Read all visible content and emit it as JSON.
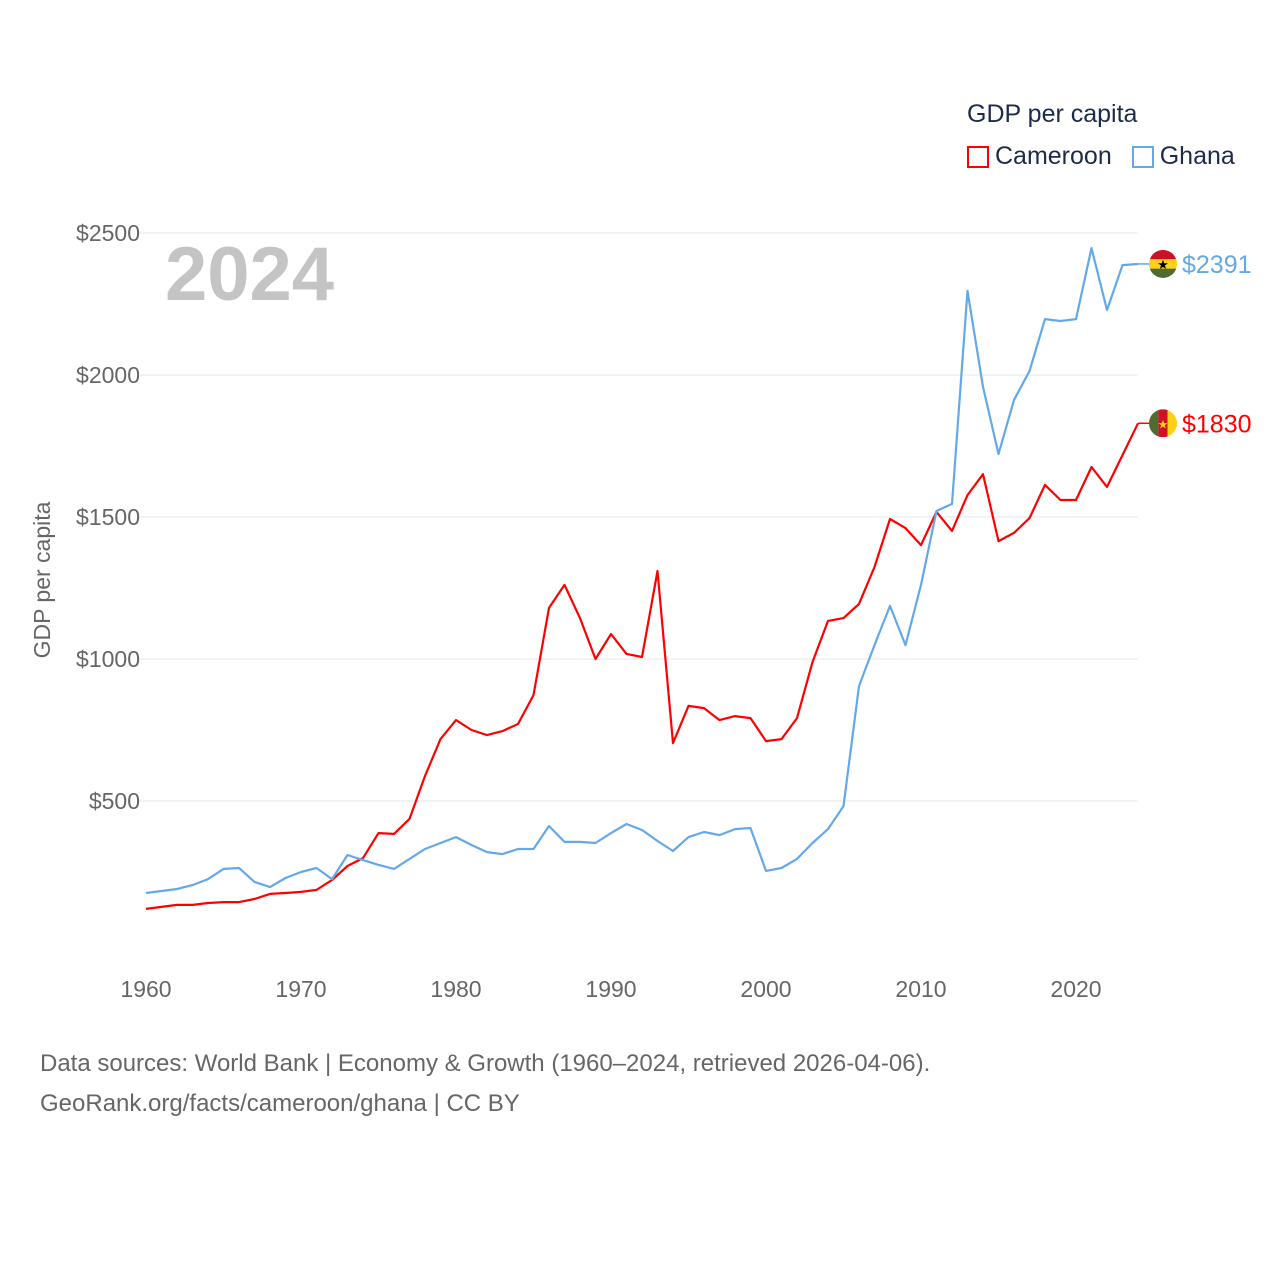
{
  "chart_data": {
    "type": "line",
    "title": "GDP per capita",
    "watermark_year": "2024",
    "xlabel": "",
    "ylabel": "GDP per capita",
    "xlim": [
      1960,
      2024
    ],
    "ylim": [
      0,
      2500
    ],
    "x_ticks": [
      1960,
      1970,
      1980,
      1990,
      2000,
      2010,
      2020
    ],
    "x_tick_labels": [
      "1960",
      "1970",
      "1980",
      "1990",
      "2000",
      "2010",
      "2020"
    ],
    "y_ticks": [
      500,
      1000,
      1500,
      2000,
      2500
    ],
    "y_tick_labels": [
      "$500",
      "$1000",
      "$1500",
      "$2000",
      "$2500"
    ],
    "grid": true,
    "legend_placement": "top-right",
    "x": [
      1960,
      1961,
      1962,
      1963,
      1964,
      1965,
      1966,
      1967,
      1968,
      1969,
      1970,
      1971,
      1972,
      1973,
      1974,
      1975,
      1976,
      1977,
      1978,
      1979,
      1980,
      1981,
      1982,
      1983,
      1984,
      1985,
      1986,
      1987,
      1988,
      1989,
      1990,
      1991,
      1992,
      1993,
      1994,
      1995,
      1996,
      1997,
      1998,
      1999,
      2000,
      2001,
      2002,
      2003,
      2004,
      2005,
      2006,
      2007,
      2008,
      2009,
      2010,
      2011,
      2012,
      2013,
      2014,
      2015,
      2016,
      2017,
      2018,
      2019,
      2020,
      2021,
      2022,
      2023,
      2024
    ],
    "series": [
      {
        "name": "Cameroon",
        "color": "#ff0000",
        "end_label": "$1830",
        "flag": "cameroon-flag",
        "values": [
          120,
          127,
          134,
          134,
          141,
          144,
          144,
          155,
          173,
          176,
          180,
          187,
          222,
          271,
          299,
          387,
          384,
          437,
          588,
          718,
          785,
          750,
          732,
          746,
          771,
          873,
          1180,
          1261,
          1144,
          1000,
          1088,
          1018,
          1007,
          1310,
          704,
          835,
          827,
          785,
          799,
          792,
          711,
          718,
          792,
          989,
          1134,
          1144,
          1194,
          1324,
          1493,
          1461,
          1401,
          1518,
          1451,
          1577,
          1651,
          1415,
          1444,
          1496,
          1613,
          1560,
          1560,
          1676,
          1606,
          1718,
          1830
        ]
      },
      {
        "name": "Ghana",
        "color": "#63a9ea",
        "end_label": "$2391",
        "flag": "ghana-flag",
        "values": [
          176,
          183,
          190,
          204,
          225,
          261,
          264,
          215,
          197,
          229,
          250,
          264,
          225,
          310,
          292,
          275,
          261,
          296,
          331,
          352,
          373,
          345,
          320,
          313,
          331,
          331,
          412,
          356,
          356,
          352,
          387,
          419,
          398,
          359,
          324,
          373,
          391,
          380,
          401,
          405,
          254,
          264,
          296,
          352,
          401,
          482,
          905,
          1049,
          1187,
          1049,
          1261,
          1521,
          1546,
          2296,
          1958,
          1722,
          1912,
          2014,
          2197,
          2190,
          2197,
          2447,
          2229,
          2387,
          2391
        ]
      }
    ]
  },
  "footer": {
    "line1": "Data sources: World Bank | Economy & Growth (1960–2024, retrieved 2026-04-06).",
    "line2": "GeoRank.org/facts/cameroon/ghana | CC BY"
  }
}
